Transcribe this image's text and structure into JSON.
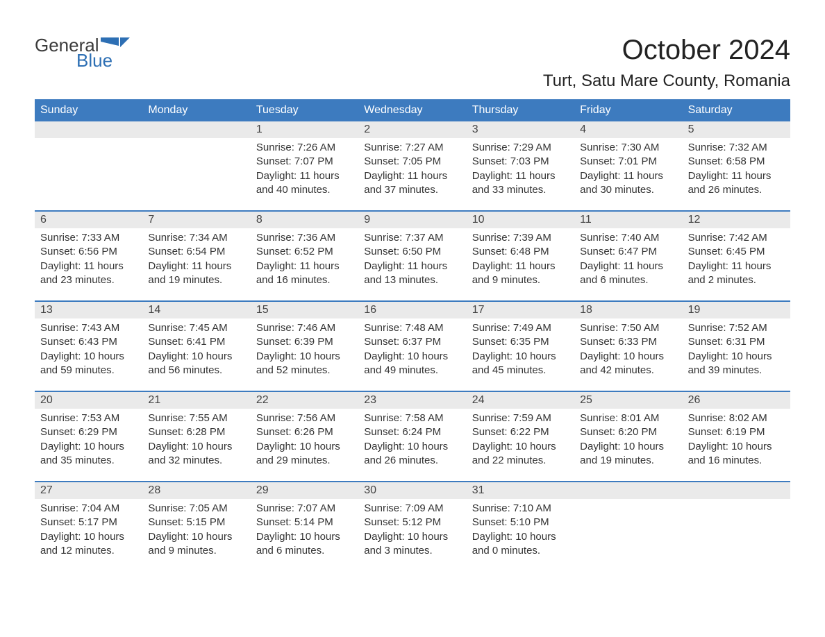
{
  "logo": {
    "general_text": "General",
    "blue_text": "Blue",
    "flag_color": "#2d6fb4"
  },
  "title": {
    "month_year": "October 2024",
    "location": "Turt, Satu Mare County, Romania"
  },
  "colors": {
    "header_bg": "#3d7bbf",
    "header_text": "#ffffff",
    "daynum_bg": "#eaeaea",
    "week_border": "#3d7bbf",
    "body_text": "#333333",
    "background": "#ffffff"
  },
  "weekdays": [
    "Sunday",
    "Monday",
    "Tuesday",
    "Wednesday",
    "Thursday",
    "Friday",
    "Saturday"
  ],
  "weeks": [
    [
      {
        "day": "",
        "sunrise": "",
        "sunset": "",
        "daylight1": "",
        "daylight2": ""
      },
      {
        "day": "",
        "sunrise": "",
        "sunset": "",
        "daylight1": "",
        "daylight2": ""
      },
      {
        "day": "1",
        "sunrise": "Sunrise: 7:26 AM",
        "sunset": "Sunset: 7:07 PM",
        "daylight1": "Daylight: 11 hours",
        "daylight2": "and 40 minutes."
      },
      {
        "day": "2",
        "sunrise": "Sunrise: 7:27 AM",
        "sunset": "Sunset: 7:05 PM",
        "daylight1": "Daylight: 11 hours",
        "daylight2": "and 37 minutes."
      },
      {
        "day": "3",
        "sunrise": "Sunrise: 7:29 AM",
        "sunset": "Sunset: 7:03 PM",
        "daylight1": "Daylight: 11 hours",
        "daylight2": "and 33 minutes."
      },
      {
        "day": "4",
        "sunrise": "Sunrise: 7:30 AM",
        "sunset": "Sunset: 7:01 PM",
        "daylight1": "Daylight: 11 hours",
        "daylight2": "and 30 minutes."
      },
      {
        "day": "5",
        "sunrise": "Sunrise: 7:32 AM",
        "sunset": "Sunset: 6:58 PM",
        "daylight1": "Daylight: 11 hours",
        "daylight2": "and 26 minutes."
      }
    ],
    [
      {
        "day": "6",
        "sunrise": "Sunrise: 7:33 AM",
        "sunset": "Sunset: 6:56 PM",
        "daylight1": "Daylight: 11 hours",
        "daylight2": "and 23 minutes."
      },
      {
        "day": "7",
        "sunrise": "Sunrise: 7:34 AM",
        "sunset": "Sunset: 6:54 PM",
        "daylight1": "Daylight: 11 hours",
        "daylight2": "and 19 minutes."
      },
      {
        "day": "8",
        "sunrise": "Sunrise: 7:36 AM",
        "sunset": "Sunset: 6:52 PM",
        "daylight1": "Daylight: 11 hours",
        "daylight2": "and 16 minutes."
      },
      {
        "day": "9",
        "sunrise": "Sunrise: 7:37 AM",
        "sunset": "Sunset: 6:50 PM",
        "daylight1": "Daylight: 11 hours",
        "daylight2": "and 13 minutes."
      },
      {
        "day": "10",
        "sunrise": "Sunrise: 7:39 AM",
        "sunset": "Sunset: 6:48 PM",
        "daylight1": "Daylight: 11 hours",
        "daylight2": "and 9 minutes."
      },
      {
        "day": "11",
        "sunrise": "Sunrise: 7:40 AM",
        "sunset": "Sunset: 6:47 PM",
        "daylight1": "Daylight: 11 hours",
        "daylight2": "and 6 minutes."
      },
      {
        "day": "12",
        "sunrise": "Sunrise: 7:42 AM",
        "sunset": "Sunset: 6:45 PM",
        "daylight1": "Daylight: 11 hours",
        "daylight2": "and 2 minutes."
      }
    ],
    [
      {
        "day": "13",
        "sunrise": "Sunrise: 7:43 AM",
        "sunset": "Sunset: 6:43 PM",
        "daylight1": "Daylight: 10 hours",
        "daylight2": "and 59 minutes."
      },
      {
        "day": "14",
        "sunrise": "Sunrise: 7:45 AM",
        "sunset": "Sunset: 6:41 PM",
        "daylight1": "Daylight: 10 hours",
        "daylight2": "and 56 minutes."
      },
      {
        "day": "15",
        "sunrise": "Sunrise: 7:46 AM",
        "sunset": "Sunset: 6:39 PM",
        "daylight1": "Daylight: 10 hours",
        "daylight2": "and 52 minutes."
      },
      {
        "day": "16",
        "sunrise": "Sunrise: 7:48 AM",
        "sunset": "Sunset: 6:37 PM",
        "daylight1": "Daylight: 10 hours",
        "daylight2": "and 49 minutes."
      },
      {
        "day": "17",
        "sunrise": "Sunrise: 7:49 AM",
        "sunset": "Sunset: 6:35 PM",
        "daylight1": "Daylight: 10 hours",
        "daylight2": "and 45 minutes."
      },
      {
        "day": "18",
        "sunrise": "Sunrise: 7:50 AM",
        "sunset": "Sunset: 6:33 PM",
        "daylight1": "Daylight: 10 hours",
        "daylight2": "and 42 minutes."
      },
      {
        "day": "19",
        "sunrise": "Sunrise: 7:52 AM",
        "sunset": "Sunset: 6:31 PM",
        "daylight1": "Daylight: 10 hours",
        "daylight2": "and 39 minutes."
      }
    ],
    [
      {
        "day": "20",
        "sunrise": "Sunrise: 7:53 AM",
        "sunset": "Sunset: 6:29 PM",
        "daylight1": "Daylight: 10 hours",
        "daylight2": "and 35 minutes."
      },
      {
        "day": "21",
        "sunrise": "Sunrise: 7:55 AM",
        "sunset": "Sunset: 6:28 PM",
        "daylight1": "Daylight: 10 hours",
        "daylight2": "and 32 minutes."
      },
      {
        "day": "22",
        "sunrise": "Sunrise: 7:56 AM",
        "sunset": "Sunset: 6:26 PM",
        "daylight1": "Daylight: 10 hours",
        "daylight2": "and 29 minutes."
      },
      {
        "day": "23",
        "sunrise": "Sunrise: 7:58 AM",
        "sunset": "Sunset: 6:24 PM",
        "daylight1": "Daylight: 10 hours",
        "daylight2": "and 26 minutes."
      },
      {
        "day": "24",
        "sunrise": "Sunrise: 7:59 AM",
        "sunset": "Sunset: 6:22 PM",
        "daylight1": "Daylight: 10 hours",
        "daylight2": "and 22 minutes."
      },
      {
        "day": "25",
        "sunrise": "Sunrise: 8:01 AM",
        "sunset": "Sunset: 6:20 PM",
        "daylight1": "Daylight: 10 hours",
        "daylight2": "and 19 minutes."
      },
      {
        "day": "26",
        "sunrise": "Sunrise: 8:02 AM",
        "sunset": "Sunset: 6:19 PM",
        "daylight1": "Daylight: 10 hours",
        "daylight2": "and 16 minutes."
      }
    ],
    [
      {
        "day": "27",
        "sunrise": "Sunrise: 7:04 AM",
        "sunset": "Sunset: 5:17 PM",
        "daylight1": "Daylight: 10 hours",
        "daylight2": "and 12 minutes."
      },
      {
        "day": "28",
        "sunrise": "Sunrise: 7:05 AM",
        "sunset": "Sunset: 5:15 PM",
        "daylight1": "Daylight: 10 hours",
        "daylight2": "and 9 minutes."
      },
      {
        "day": "29",
        "sunrise": "Sunrise: 7:07 AM",
        "sunset": "Sunset: 5:14 PM",
        "daylight1": "Daylight: 10 hours",
        "daylight2": "and 6 minutes."
      },
      {
        "day": "30",
        "sunrise": "Sunrise: 7:09 AM",
        "sunset": "Sunset: 5:12 PM",
        "daylight1": "Daylight: 10 hours",
        "daylight2": "and 3 minutes."
      },
      {
        "day": "31",
        "sunrise": "Sunrise: 7:10 AM",
        "sunset": "Sunset: 5:10 PM",
        "daylight1": "Daylight: 10 hours",
        "daylight2": "and 0 minutes."
      },
      {
        "day": "",
        "sunrise": "",
        "sunset": "",
        "daylight1": "",
        "daylight2": ""
      },
      {
        "day": "",
        "sunrise": "",
        "sunset": "",
        "daylight1": "",
        "daylight2": ""
      }
    ]
  ]
}
